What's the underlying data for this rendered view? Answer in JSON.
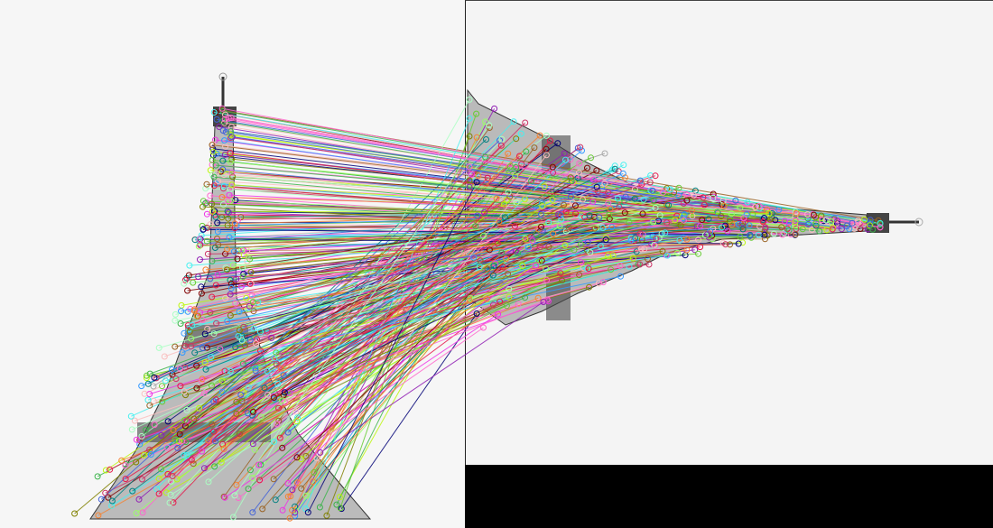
{
  "figure": {
    "description_kind": "feature-matches-visualization",
    "left_image": "eiffel-tower-upright",
    "right_image": "eiffel-tower-rotated",
    "padding_color": "#000000",
    "background_color": "#f5f5f5",
    "line_palette": [
      "#e6194b",
      "#3cb44b",
      "#4363d8",
      "#f58231",
      "#911eb4",
      "#46f0f0",
      "#f032e6",
      "#bcf60c",
      "#fabebe",
      "#008080",
      "#9a6324",
      "#800000",
      "#aaffc3",
      "#808000",
      "#000075",
      "#ff66cc",
      "#66cc33",
      "#3399ff",
      "#cc3366",
      "#99ff66"
    ]
  }
}
